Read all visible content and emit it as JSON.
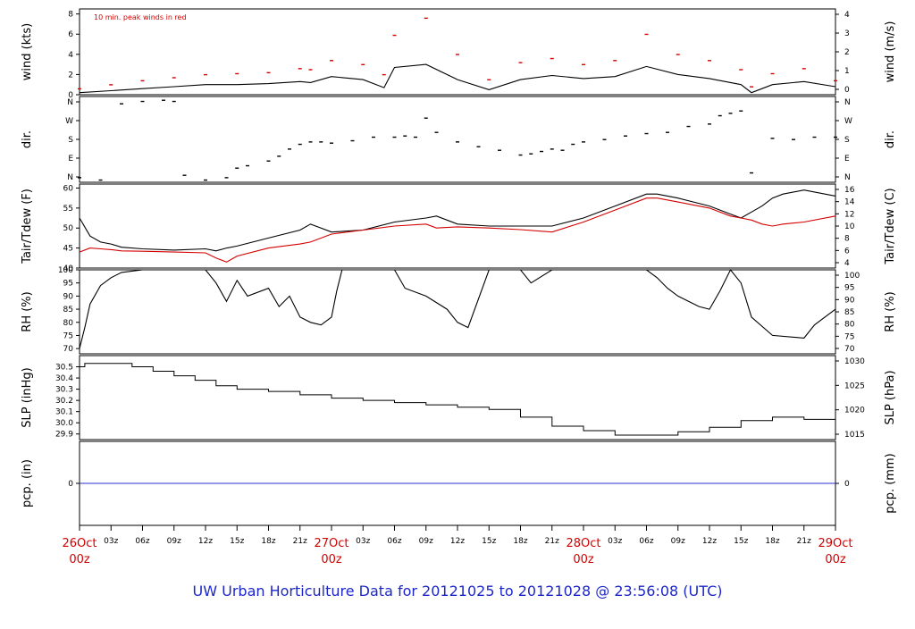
{
  "footer": "UW Urban Horticulture Data for 20121025  to  20121028 @ 23:56:08  (UTC)",
  "colors": {
    "black": "#000000",
    "red": "#d40000",
    "blue": "#2a2fd0",
    "footer": "#1d27c9",
    "axis": "#000000"
  },
  "x_axis": {
    "hours_range": [
      0,
      72
    ],
    "hour_ticks": [
      "03z",
      "06z",
      "09z",
      "12z",
      "15z",
      "18z",
      "21z"
    ],
    "day_labels": [
      {
        "day": "26Oct",
        "hour": "00z"
      },
      {
        "day": "27Oct",
        "hour": "00z"
      },
      {
        "day": "28Oct",
        "hour": "00z"
      },
      {
        "day": "29Oct",
        "hour": "00z"
      }
    ]
  },
  "chart_data": [
    {
      "id": "wind",
      "type": "line",
      "left_label": "wind (kts)",
      "right_label": "wind (m/s)",
      "annotation": "10 min. peak winds in red",
      "ylim": [
        0,
        8.5
      ],
      "left_ticks": [
        "0",
        "2",
        "4",
        "6",
        "8"
      ],
      "right_ticks": [
        "0",
        "1",
        "2",
        "3",
        "4"
      ],
      "series": [
        {
          "style": "line",
          "color": "black",
          "x": [
            0,
            3,
            6,
            9,
            12,
            15,
            18,
            21,
            22,
            24,
            27,
            29,
            30,
            33,
            36,
            39,
            42,
            45,
            48,
            51,
            54,
            57,
            60,
            63,
            64,
            66,
            69,
            72
          ],
          "y": [
            0.2,
            0.4,
            0.6,
            0.8,
            1.0,
            1.0,
            1.1,
            1.3,
            1.2,
            1.8,
            1.5,
            0.7,
            2.7,
            3.0,
            1.5,
            0.5,
            1.5,
            1.9,
            1.6,
            1.8,
            2.8,
            2.0,
            1.6,
            1.0,
            0.2,
            1.0,
            1.3,
            0.8
          ]
        },
        {
          "style": "points",
          "color": "red",
          "x": [
            0,
            3,
            6,
            9,
            12,
            15,
            18,
            21,
            22,
            24,
            27,
            29,
            30,
            33,
            36,
            39,
            42,
            45,
            48,
            51,
            54,
            57,
            60,
            63,
            64,
            66,
            69,
            72
          ],
          "y": [
            0.6,
            1.0,
            1.4,
            1.7,
            2.0,
            2.1,
            2.2,
            2.6,
            2.5,
            3.4,
            3.0,
            2.0,
            5.9,
            7.6,
            4.0,
            1.5,
            3.2,
            3.6,
            3.0,
            3.4,
            6.0,
            4.0,
            3.4,
            2.5,
            0.8,
            2.1,
            2.6,
            1.4
          ]
        }
      ]
    },
    {
      "id": "dir",
      "type": "scatter",
      "left_label": "dir.",
      "right_label": "dir.",
      "ylim": [
        0,
        360
      ],
      "left_ticks": [
        "N",
        "E",
        "S",
        "W",
        "N"
      ],
      "right_ticks": [
        "N",
        "E",
        "S",
        "W",
        "N"
      ],
      "series": [
        {
          "style": "dots",
          "color": "black",
          "x": [
            0,
            2,
            4,
            6,
            8,
            9,
            10,
            12,
            14,
            15,
            16,
            18,
            19,
            20,
            21,
            22,
            23,
            24,
            26,
            28,
            30,
            31,
            32,
            33,
            34,
            36,
            38,
            40,
            42,
            43,
            44,
            45,
            46,
            47,
            48,
            50,
            52,
            54,
            56,
            58,
            60,
            61,
            62,
            63,
            64,
            66,
            68,
            70,
            72
          ],
          "y": [
            20,
            10,
            330,
            340,
            345,
            340,
            30,
            10,
            20,
            60,
            70,
            90,
            110,
            140,
            160,
            170,
            170,
            165,
            175,
            190,
            190,
            195,
            190,
            270,
            210,
            170,
            150,
            135,
            115,
            120,
            130,
            140,
            135,
            160,
            170,
            180,
            195,
            205,
            210,
            235,
            245,
            280,
            290,
            300,
            40,
            185,
            180,
            190,
            190
          ]
        }
      ]
    },
    {
      "id": "temp",
      "type": "line",
      "left_label": "Tair/Tdew (F)",
      "right_label": "Tair/Tdew (C)",
      "ylim": [
        40,
        61
      ],
      "left_ticks": [
        "40",
        "45",
        "50",
        "55",
        "60"
      ],
      "right_ticks": [
        "4",
        "6",
        "8",
        "10",
        "12",
        "14",
        "16"
      ],
      "series": [
        {
          "name": "Tair",
          "style": "line",
          "color": "black",
          "x": [
            0,
            1,
            2,
            3,
            4,
            6,
            9,
            12,
            13,
            14,
            15,
            18,
            21,
            22,
            24,
            27,
            30,
            33,
            34,
            36,
            39,
            42,
            45,
            48,
            51,
            54,
            55,
            57,
            60,
            62,
            63,
            64,
            65,
            66,
            67,
            69,
            72
          ],
          "y": [
            52.5,
            48,
            46.5,
            46,
            45.2,
            44.8,
            44.5,
            44.8,
            44.3,
            45,
            45.5,
            47.5,
            49.5,
            51,
            49,
            49.5,
            51.5,
            52.5,
            53,
            51,
            50.5,
            50.5,
            50.5,
            52.5,
            55.5,
            58.5,
            58.5,
            57.5,
            55.5,
            53.5,
            52.5,
            54,
            55.5,
            57.5,
            58.5,
            59.5,
            58
          ]
        },
        {
          "name": "Tdew",
          "style": "line",
          "color": "red",
          "x": [
            0,
            1,
            2,
            3,
            4,
            6,
            9,
            12,
            13,
            14,
            15,
            18,
            21,
            22,
            24,
            27,
            30,
            33,
            34,
            36,
            39,
            42,
            45,
            48,
            51,
            54,
            55,
            57,
            60,
            62,
            63,
            64,
            65,
            66,
            67,
            69,
            72
          ],
          "y": [
            44,
            45,
            44.8,
            44.6,
            44.3,
            44.2,
            44,
            43.8,
            42.5,
            41.5,
            43,
            45,
            46,
            46.5,
            48.5,
            49.5,
            50.5,
            51,
            50,
            50.3,
            50,
            49.6,
            49,
            51.5,
            54.5,
            57.5,
            57.5,
            56.5,
            55,
            53,
            52.5,
            52,
            51,
            50.5,
            51,
            51.5,
            53
          ]
        }
      ]
    },
    {
      "id": "rh",
      "type": "line",
      "left_label": "RH (%)",
      "right_label": "RH (%)",
      "ylim": [
        68,
        100
      ],
      "left_ticks": [
        "70",
        "75",
        "80",
        "85",
        "90",
        "95",
        "100"
      ],
      "right_ticks": [
        "70",
        "75",
        "80",
        "85",
        "90",
        "95",
        "100"
      ],
      "series": [
        {
          "style": "line",
          "color": "black",
          "x": [
            0,
            0.5,
            1,
            2,
            3,
            4,
            6,
            9,
            12,
            13,
            14,
            15,
            16,
            18,
            19,
            20,
            21,
            22,
            23,
            24,
            24.5,
            25,
            27,
            30,
            31,
            33,
            35,
            36,
            37,
            39,
            42,
            43,
            45,
            48,
            51,
            54,
            55,
            56,
            57,
            59,
            60,
            61,
            62,
            63,
            64,
            66,
            69,
            70,
            72
          ],
          "y": [
            70,
            78,
            87,
            94,
            97,
            99,
            100,
            100,
            100,
            95,
            88,
            96,
            90,
            93,
            86,
            90,
            82,
            80,
            79,
            82,
            92,
            100,
            100,
            100,
            93,
            90,
            85,
            80,
            78,
            100,
            100,
            95,
            100,
            100,
            100,
            100,
            97,
            93,
            90,
            86,
            85,
            92,
            100,
            95,
            82,
            75,
            74,
            79,
            85
          ]
        }
      ]
    },
    {
      "id": "slp",
      "type": "line",
      "left_label": "SLP (inHg)",
      "right_label": "SLP (hPa)",
      "ylim": [
        29.85,
        30.6
      ],
      "left_ticks": [
        "29.9",
        "30.0",
        "30.1",
        "30.2",
        "30.3",
        "30.4",
        "30.5"
      ],
      "right_ticks": [
        "1015",
        "1020",
        "1025",
        "1030"
      ],
      "series": [
        {
          "style": "step",
          "color": "black",
          "x": [
            0,
            0.5,
            3,
            5,
            7,
            9,
            11,
            13,
            15,
            18,
            21,
            24,
            27,
            30,
            33,
            36,
            39,
            42,
            45,
            48,
            51,
            54,
            57,
            60,
            63,
            66,
            69,
            72
          ],
          "y": [
            30.5,
            30.53,
            30.53,
            30.5,
            30.46,
            30.42,
            30.38,
            30.33,
            30.3,
            30.28,
            30.25,
            30.22,
            30.2,
            30.18,
            30.16,
            30.14,
            30.12,
            30.05,
            29.97,
            29.93,
            29.89,
            29.89,
            29.92,
            29.96,
            30.02,
            30.05,
            30.03,
            30.0
          ]
        }
      ]
    },
    {
      "id": "pcp",
      "type": "line",
      "left_label": "pcp. (in)",
      "right_label": "pcp. (mm)",
      "ylim": [
        -1,
        1
      ],
      "left_ticks": [
        "0"
      ],
      "right_ticks": [
        "0"
      ],
      "series": [
        {
          "style": "line",
          "color": "blue",
          "x": [
            0,
            72
          ],
          "y": [
            0,
            0
          ]
        }
      ]
    }
  ]
}
